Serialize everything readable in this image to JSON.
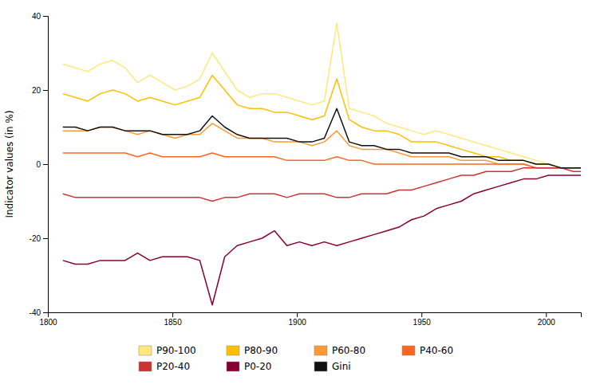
{
  "chart_data": {
    "type": "line",
    "ylabel": "Indicator values (in %)",
    "xlim": [
      1800,
      2014
    ],
    "ylim": [
      -40,
      40
    ],
    "xticks": [
      1800,
      1850,
      1900,
      1950,
      2000
    ],
    "yticks": [
      -40,
      -20,
      0,
      20,
      40
    ],
    "x": [
      1806,
      1811,
      1816,
      1821,
      1826,
      1831,
      1836,
      1841,
      1846,
      1851,
      1856,
      1861,
      1866,
      1871,
      1876,
      1881,
      1886,
      1891,
      1896,
      1901,
      1906,
      1911,
      1916,
      1921,
      1926,
      1931,
      1936,
      1941,
      1946,
      1951,
      1956,
      1961,
      1966,
      1971,
      1976,
      1981,
      1986,
      1991,
      1996,
      2001,
      2006,
      2011,
      2014
    ],
    "series": [
      {
        "name": "P90-100",
        "color": "#FFE87A",
        "values": [
          27,
          26,
          25,
          27,
          28,
          26,
          22,
          24,
          22,
          20,
          21,
          23,
          30,
          25,
          20,
          18,
          19,
          19,
          18,
          17,
          16,
          17,
          38,
          15,
          14,
          13,
          11,
          10,
          9,
          8,
          9,
          8,
          7,
          6,
          5,
          4,
          3,
          2,
          1,
          0,
          -1,
          -1,
          -1
        ]
      },
      {
        "name": "P80-90",
        "color": "#FFBF00",
        "values": [
          19,
          18,
          17,
          19,
          20,
          19,
          17,
          18,
          17,
          16,
          17,
          18,
          24,
          20,
          16,
          15,
          15,
          14,
          14,
          13,
          12,
          13,
          23,
          12,
          10,
          9,
          9,
          8,
          6,
          6,
          6,
          5,
          4,
          3,
          2,
          2,
          1,
          1,
          0,
          0,
          -1,
          -1,
          -1
        ]
      },
      {
        "name": "P60-80",
        "color": "#FF9933",
        "values": [
          9,
          9,
          9,
          10,
          10,
          9,
          8,
          9,
          8,
          7,
          8,
          8,
          11,
          9,
          7,
          7,
          7,
          6,
          6,
          6,
          5,
          6,
          9,
          5,
          4,
          4,
          4,
          3,
          2,
          2,
          2,
          2,
          1,
          1,
          1,
          0,
          0,
          0,
          -1,
          -1,
          -1,
          -1,
          -1
        ]
      },
      {
        "name": "P40-60",
        "color": "#FF6622",
        "values": [
          3,
          3,
          3,
          3,
          3,
          3,
          2,
          3,
          2,
          2,
          2,
          2,
          3,
          2,
          2,
          2,
          2,
          2,
          1,
          1,
          1,
          1,
          2,
          1,
          1,
          0,
          0,
          0,
          0,
          0,
          0,
          0,
          0,
          0,
          0,
          0,
          0,
          0,
          -1,
          -1,
          -1,
          -1,
          -1
        ]
      },
      {
        "name": "P20-40",
        "color": "#CC3333",
        "values": [
          -8,
          -9,
          -9,
          -9,
          -9,
          -9,
          -9,
          -9,
          -9,
          -9,
          -9,
          -9,
          -10,
          -9,
          -9,
          -8,
          -8,
          -8,
          -9,
          -8,
          -8,
          -8,
          -9,
          -9,
          -8,
          -8,
          -8,
          -7,
          -7,
          -6,
          -5,
          -4,
          -3,
          -3,
          -2,
          -2,
          -2,
          -1,
          -1,
          -1,
          -1,
          -2,
          -2
        ]
      },
      {
        "name": "P0-20",
        "color": "#880033",
        "values": [
          -26,
          -27,
          -27,
          -26,
          -26,
          -26,
          -24,
          -26,
          -25,
          -25,
          -25,
          -26,
          -38,
          -25,
          -22,
          -21,
          -20,
          -18,
          -22,
          -21,
          -22,
          -21,
          -22,
          -21,
          -20,
          -19,
          -18,
          -17,
          -15,
          -14,
          -12,
          -11,
          -10,
          -8,
          -7,
          -6,
          -5,
          -4,
          -4,
          -3,
          -3,
          -3,
          -3
        ]
      },
      {
        "name": "Gini",
        "color": "#111111",
        "values": [
          10,
          10,
          9,
          10,
          10,
          9,
          9,
          9,
          8,
          8,
          8,
          9,
          13,
          10,
          8,
          7,
          7,
          7,
          7,
          6,
          6,
          7,
          15,
          6,
          5,
          5,
          4,
          4,
          3,
          3,
          3,
          3,
          2,
          2,
          2,
          1,
          1,
          1,
          0,
          0,
          -1,
          -1,
          -1
        ]
      }
    ]
  }
}
